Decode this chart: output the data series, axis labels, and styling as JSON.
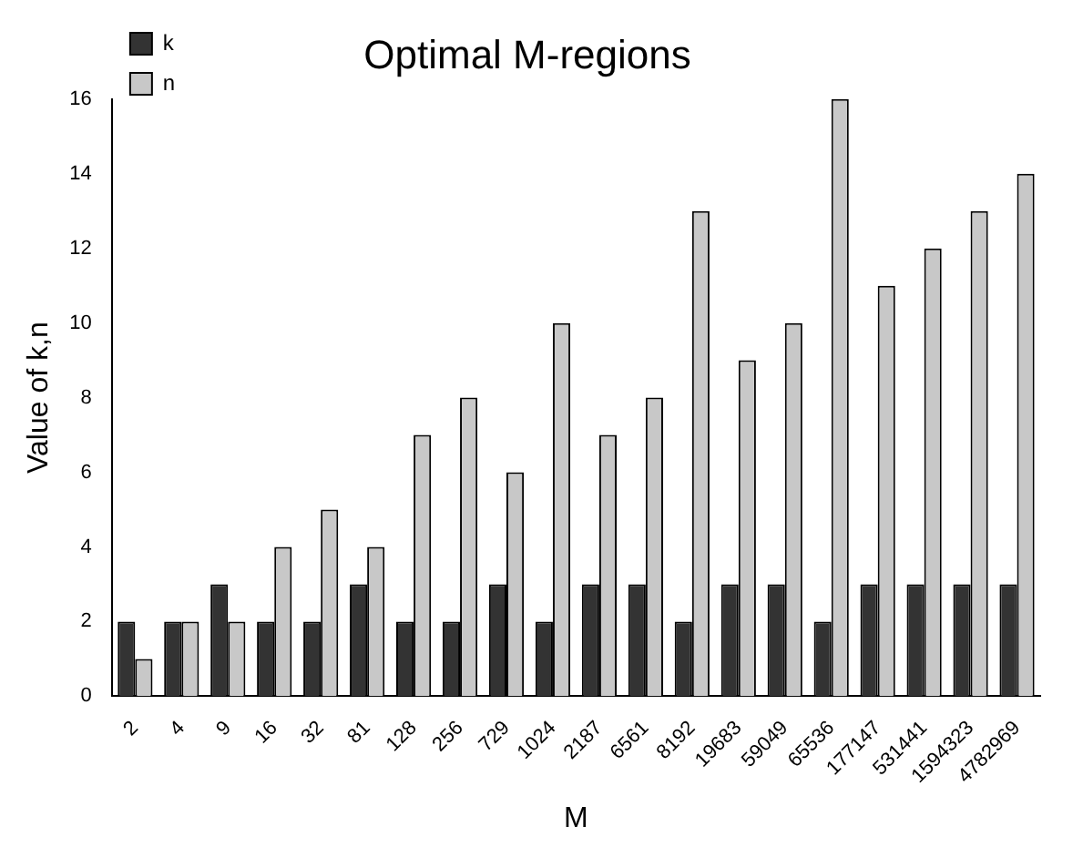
{
  "chart_data": {
    "type": "bar",
    "title": "Optimal M-regions",
    "xlabel": "M",
    "ylabel": "Value of k,n",
    "categories": [
      "2",
      "4",
      "9",
      "16",
      "32",
      "81",
      "128",
      "256",
      "729",
      "1024",
      "2187",
      "6561",
      "8192",
      "19683",
      "59049",
      "65536",
      "177147",
      "531441",
      "1594323",
      "4782969"
    ],
    "series": [
      {
        "name": "k",
        "color": "#333333",
        "values": [
          2,
          2,
          3,
          2,
          2,
          3,
          2,
          2,
          3,
          2,
          3,
          3,
          2,
          3,
          3,
          2,
          3,
          3,
          3,
          3
        ]
      },
      {
        "name": "n",
        "color": "#c8c8c8",
        "values": [
          1,
          2,
          2,
          4,
          5,
          4,
          7,
          8,
          6,
          10,
          7,
          8,
          13,
          9,
          10,
          16,
          11,
          12,
          13,
          14
        ]
      }
    ],
    "ylim": [
      0,
      16
    ],
    "yticks": [
      0,
      2,
      4,
      6,
      8,
      10,
      12,
      14,
      16
    ],
    "grid": false,
    "legend": "top left"
  }
}
